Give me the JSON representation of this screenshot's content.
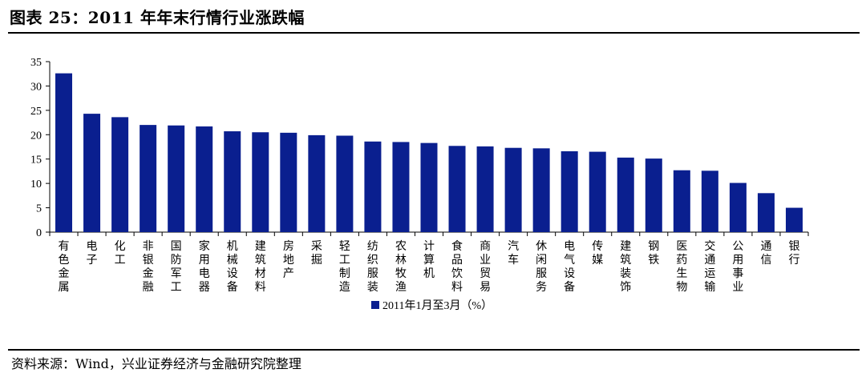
{
  "header": {
    "title": "图表 25：2011 年年末行情行业涨跌幅"
  },
  "footer": {
    "source": "资料来源：Wind，兴业证券经济与金融研究院整理"
  },
  "colors": {
    "bar": "#0a1f8f",
    "axis": "#000000"
  },
  "chart_data": {
    "type": "bar",
    "categories": [
      "有色金属",
      "电子",
      "化工",
      "非银金融",
      "国防军工",
      "家用电器",
      "机械设备",
      "建筑材料",
      "房地产",
      "采掘",
      "轻工制造",
      "纺织服装",
      "农林牧渔",
      "计算机",
      "食品饮料",
      "商业贸易",
      "汽车",
      "休闲服务",
      "电气设备",
      "传媒",
      "建筑装饰",
      "钢铁",
      "医药生物",
      "交通运输",
      "公用事业",
      "通信",
      "银行"
    ],
    "series": [
      {
        "name": "2011年1月至3月（%）",
        "values": [
          32.6,
          24.3,
          23.6,
          22.0,
          21.9,
          21.7,
          20.7,
          20.5,
          20.4,
          19.9,
          19.8,
          18.6,
          18.5,
          18.3,
          17.7,
          17.6,
          17.3,
          17.2,
          16.6,
          16.5,
          15.3,
          15.1,
          12.7,
          12.6,
          10.1,
          8.0,
          5.0
        ]
      }
    ],
    "ylim": [
      0,
      35
    ],
    "yticks": [
      "0",
      "5",
      "10",
      "15",
      "20",
      "25",
      "30",
      "35"
    ],
    "legend": "bottom-center",
    "grid": false
  }
}
